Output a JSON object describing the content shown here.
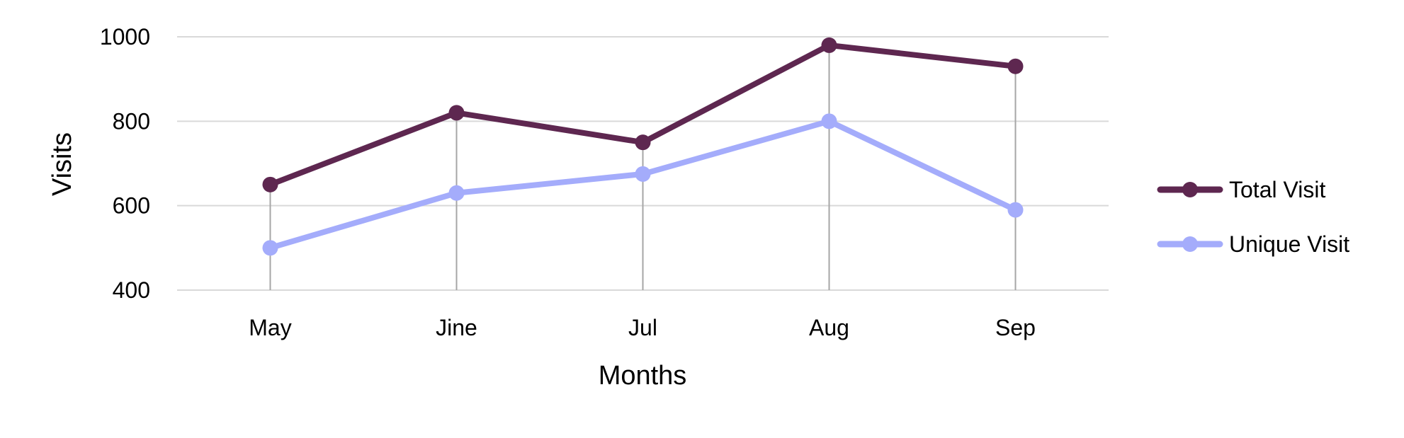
{
  "chart_data": {
    "type": "line",
    "title": "",
    "xlabel": "Months",
    "ylabel": "Visits",
    "categories": [
      "May",
      "Jine",
      "Jul",
      "Aug",
      "Sep"
    ],
    "ylim": [
      400,
      1000
    ],
    "yticks": [
      400,
      600,
      800,
      1000
    ],
    "grid": true,
    "drop_lines": true,
    "legend_position": "right",
    "series": [
      {
        "name": "Total Visit",
        "color": "#5e2750",
        "values": [
          650,
          820,
          750,
          980,
          930
        ]
      },
      {
        "name": "Unique Visit",
        "color": "#a4acfb",
        "values": [
          500,
          630,
          675,
          800,
          590
        ]
      }
    ]
  }
}
